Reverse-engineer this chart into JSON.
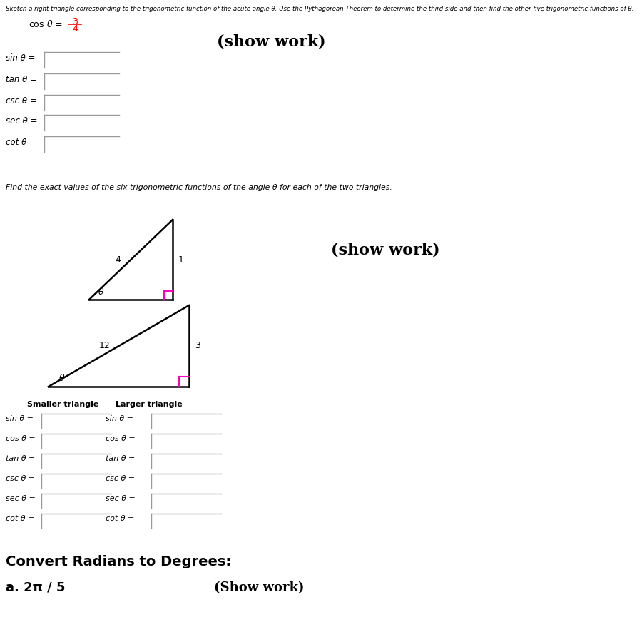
{
  "bg_color": "#ffffff",
  "top_instruction": "Sketch a right triangle corresponding to the trigonometric function of the acute angle θ. Use the Pythagorean Theorem to determine the third side and then find the other five trigonometric functions of θ.",
  "cos_num": "3",
  "cos_den": "4",
  "show_work_1": "(show work)",
  "trig_labels_1": [
    "sin θ =",
    "tan θ =",
    "csc θ =",
    "sec θ =",
    "cot θ ="
  ],
  "find_instruction": "Find the exact values of the six trigonometric functions of the angle θ for each of the two triangles.",
  "show_work_2": "(show work)",
  "smaller_triangle_label": "Smaller triangle",
  "larger_triangle_label": "Larger triangle",
  "trig_labels_2": [
    "sin θ =",
    "cos θ =",
    "tan θ =",
    "csc θ =",
    "sec θ =",
    "cot θ ="
  ],
  "convert_title": "Convert Radians to Degrees:",
  "convert_a": "a. 2π / 5",
  "show_work_3": "(Show work)",
  "right_angle_color": "#ff00bb"
}
